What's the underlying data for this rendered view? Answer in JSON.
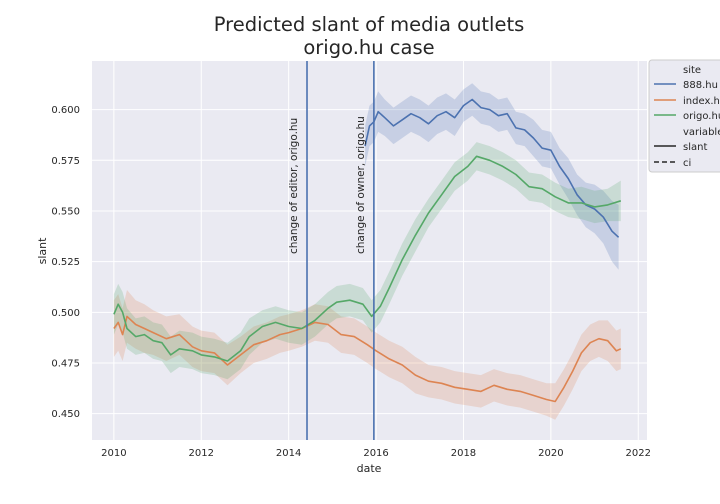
{
  "chart_data": {
    "type": "line",
    "title": "Predicted slant of media outlets",
    "subtitle": "origo.hu case",
    "xlabel": "date",
    "ylabel": "slant",
    "xlim": [
      2009.5,
      2022.2
    ],
    "ylim": [
      0.437,
      0.624
    ],
    "grid": true,
    "legend_position": "right-outside",
    "x_ticks": [
      2010,
      2012,
      2014,
      2016,
      2018,
      2020,
      2022
    ],
    "x_tick_labels": [
      "2010",
      "2012",
      "2014",
      "2016",
      "2018",
      "2020",
      "2022"
    ],
    "y_ticks": [
      0.45,
      0.475,
      0.5,
      0.525,
      0.55,
      0.575,
      0.6
    ],
    "y_tick_labels": [
      "0.450",
      "0.475",
      "0.500",
      "0.525",
      "0.550",
      "0.575",
      "0.600"
    ],
    "vlines": [
      {
        "x": 2014.42,
        "label": "change of editor, origo.hu"
      },
      {
        "x": 2015.95,
        "label": "change of owner, origo.hu"
      }
    ],
    "legend": {
      "site_title": "site",
      "variable_title": "variable",
      "sites": [
        "888.hu",
        "index.hu",
        "origo.hu"
      ],
      "variables": [
        {
          "name": "slant",
          "style": "solid"
        },
        {
          "name": "ci",
          "style": "dashed"
        }
      ]
    },
    "series": [
      {
        "name": "888.hu",
        "color": "#4c72b0",
        "x": [
          2015.75,
          2015.85,
          2015.95,
          2016.05,
          2016.2,
          2016.4,
          2016.6,
          2016.8,
          2017.0,
          2017.2,
          2017.4,
          2017.6,
          2017.8,
          2018.0,
          2018.2,
          2018.4,
          2018.6,
          2018.8,
          2019.0,
          2019.2,
          2019.4,
          2019.6,
          2019.8,
          2020.0,
          2020.2,
          2020.4,
          2020.6,
          2020.8,
          2021.0,
          2021.2,
          2021.4,
          2021.55
        ],
        "y": [
          0.582,
          0.592,
          0.594,
          0.599,
          0.596,
          0.592,
          0.595,
          0.598,
          0.596,
          0.593,
          0.597,
          0.599,
          0.596,
          0.602,
          0.605,
          0.601,
          0.6,
          0.597,
          0.598,
          0.591,
          0.59,
          0.586,
          0.581,
          0.58,
          0.572,
          0.566,
          0.558,
          0.553,
          0.551,
          0.547,
          0.54,
          0.537
        ],
        "ci_half_width": [
          0.01,
          0.01,
          0.01,
          0.01,
          0.009,
          0.009,
          0.009,
          0.009,
          0.009,
          0.009,
          0.009,
          0.009,
          0.009,
          0.008,
          0.008,
          0.008,
          0.008,
          0.008,
          0.008,
          0.008,
          0.008,
          0.009,
          0.009,
          0.009,
          0.009,
          0.01,
          0.01,
          0.011,
          0.012,
          0.013,
          0.015,
          0.016
        ]
      },
      {
        "name": "index.hu",
        "color": "#dd8452",
        "x": [
          2010.0,
          2010.1,
          2010.2,
          2010.3,
          2010.5,
          2010.7,
          2010.9,
          2011.2,
          2011.5,
          2011.8,
          2012.0,
          2012.3,
          2012.6,
          2012.9,
          2013.2,
          2013.5,
          2013.8,
          2014.0,
          2014.3,
          2014.6,
          2014.9,
          2015.2,
          2015.5,
          2015.8,
          2016.0,
          2016.3,
          2016.6,
          2016.9,
          2017.2,
          2017.5,
          2017.8,
          2018.1,
          2018.4,
          2018.7,
          2019.0,
          2019.3,
          2019.6,
          2019.9,
          2020.1,
          2020.3,
          2020.5,
          2020.7,
          2020.9,
          2021.1,
          2021.3,
          2021.5,
          2021.6
        ],
        "y": [
          0.492,
          0.495,
          0.489,
          0.498,
          0.494,
          0.492,
          0.49,
          0.487,
          0.489,
          0.483,
          0.481,
          0.48,
          0.474,
          0.479,
          0.484,
          0.486,
          0.489,
          0.49,
          0.492,
          0.495,
          0.494,
          0.489,
          0.488,
          0.484,
          0.481,
          0.477,
          0.474,
          0.469,
          0.466,
          0.465,
          0.463,
          0.462,
          0.461,
          0.464,
          0.462,
          0.461,
          0.459,
          0.457,
          0.456,
          0.463,
          0.471,
          0.48,
          0.485,
          0.487,
          0.486,
          0.481,
          0.482
        ],
        "ci_half_width": [
          0.014,
          0.014,
          0.013,
          0.013,
          0.012,
          0.012,
          0.011,
          0.011,
          0.01,
          0.01,
          0.01,
          0.01,
          0.01,
          0.009,
          0.009,
          0.009,
          0.009,
          0.009,
          0.009,
          0.009,
          0.009,
          0.009,
          0.009,
          0.009,
          0.009,
          0.009,
          0.009,
          0.009,
          0.008,
          0.008,
          0.008,
          0.008,
          0.008,
          0.008,
          0.008,
          0.008,
          0.008,
          0.008,
          0.009,
          0.009,
          0.009,
          0.009,
          0.009,
          0.009,
          0.01,
          0.01,
          0.01
        ]
      },
      {
        "name": "origo.hu",
        "color": "#55a868",
        "x": [
          2010.0,
          2010.1,
          2010.2,
          2010.3,
          2010.5,
          2010.7,
          2010.9,
          2011.1,
          2011.3,
          2011.5,
          2011.8,
          2012.0,
          2012.3,
          2012.6,
          2012.9,
          2013.1,
          2013.4,
          2013.7,
          2014.0,
          2014.3,
          2014.6,
          2014.9,
          2015.1,
          2015.4,
          2015.7,
          2015.9,
          2016.1,
          2016.3,
          2016.6,
          2016.9,
          2017.2,
          2017.5,
          2017.8,
          2018.1,
          2018.3,
          2018.6,
          2018.9,
          2019.2,
          2019.5,
          2019.8,
          2020.1,
          2020.4,
          2020.7,
          2021.0,
          2021.3,
          2021.6
        ],
        "y": [
          0.499,
          0.504,
          0.5,
          0.492,
          0.488,
          0.489,
          0.486,
          0.485,
          0.479,
          0.482,
          0.481,
          0.479,
          0.478,
          0.476,
          0.481,
          0.488,
          0.493,
          0.495,
          0.493,
          0.492,
          0.496,
          0.502,
          0.505,
          0.506,
          0.504,
          0.498,
          0.503,
          0.512,
          0.526,
          0.538,
          0.549,
          0.558,
          0.567,
          0.572,
          0.577,
          0.575,
          0.572,
          0.568,
          0.562,
          0.561,
          0.557,
          0.554,
          0.554,
          0.552,
          0.553,
          0.555
        ],
        "ci_half_width": [
          0.01,
          0.01,
          0.01,
          0.01,
          0.009,
          0.009,
          0.009,
          0.009,
          0.009,
          0.009,
          0.009,
          0.009,
          0.009,
          0.009,
          0.009,
          0.009,
          0.008,
          0.008,
          0.008,
          0.008,
          0.008,
          0.008,
          0.008,
          0.008,
          0.008,
          0.008,
          0.008,
          0.008,
          0.008,
          0.008,
          0.007,
          0.007,
          0.007,
          0.007,
          0.007,
          0.007,
          0.007,
          0.007,
          0.007,
          0.007,
          0.007,
          0.007,
          0.008,
          0.008,
          0.008,
          0.01
        ]
      }
    ]
  }
}
